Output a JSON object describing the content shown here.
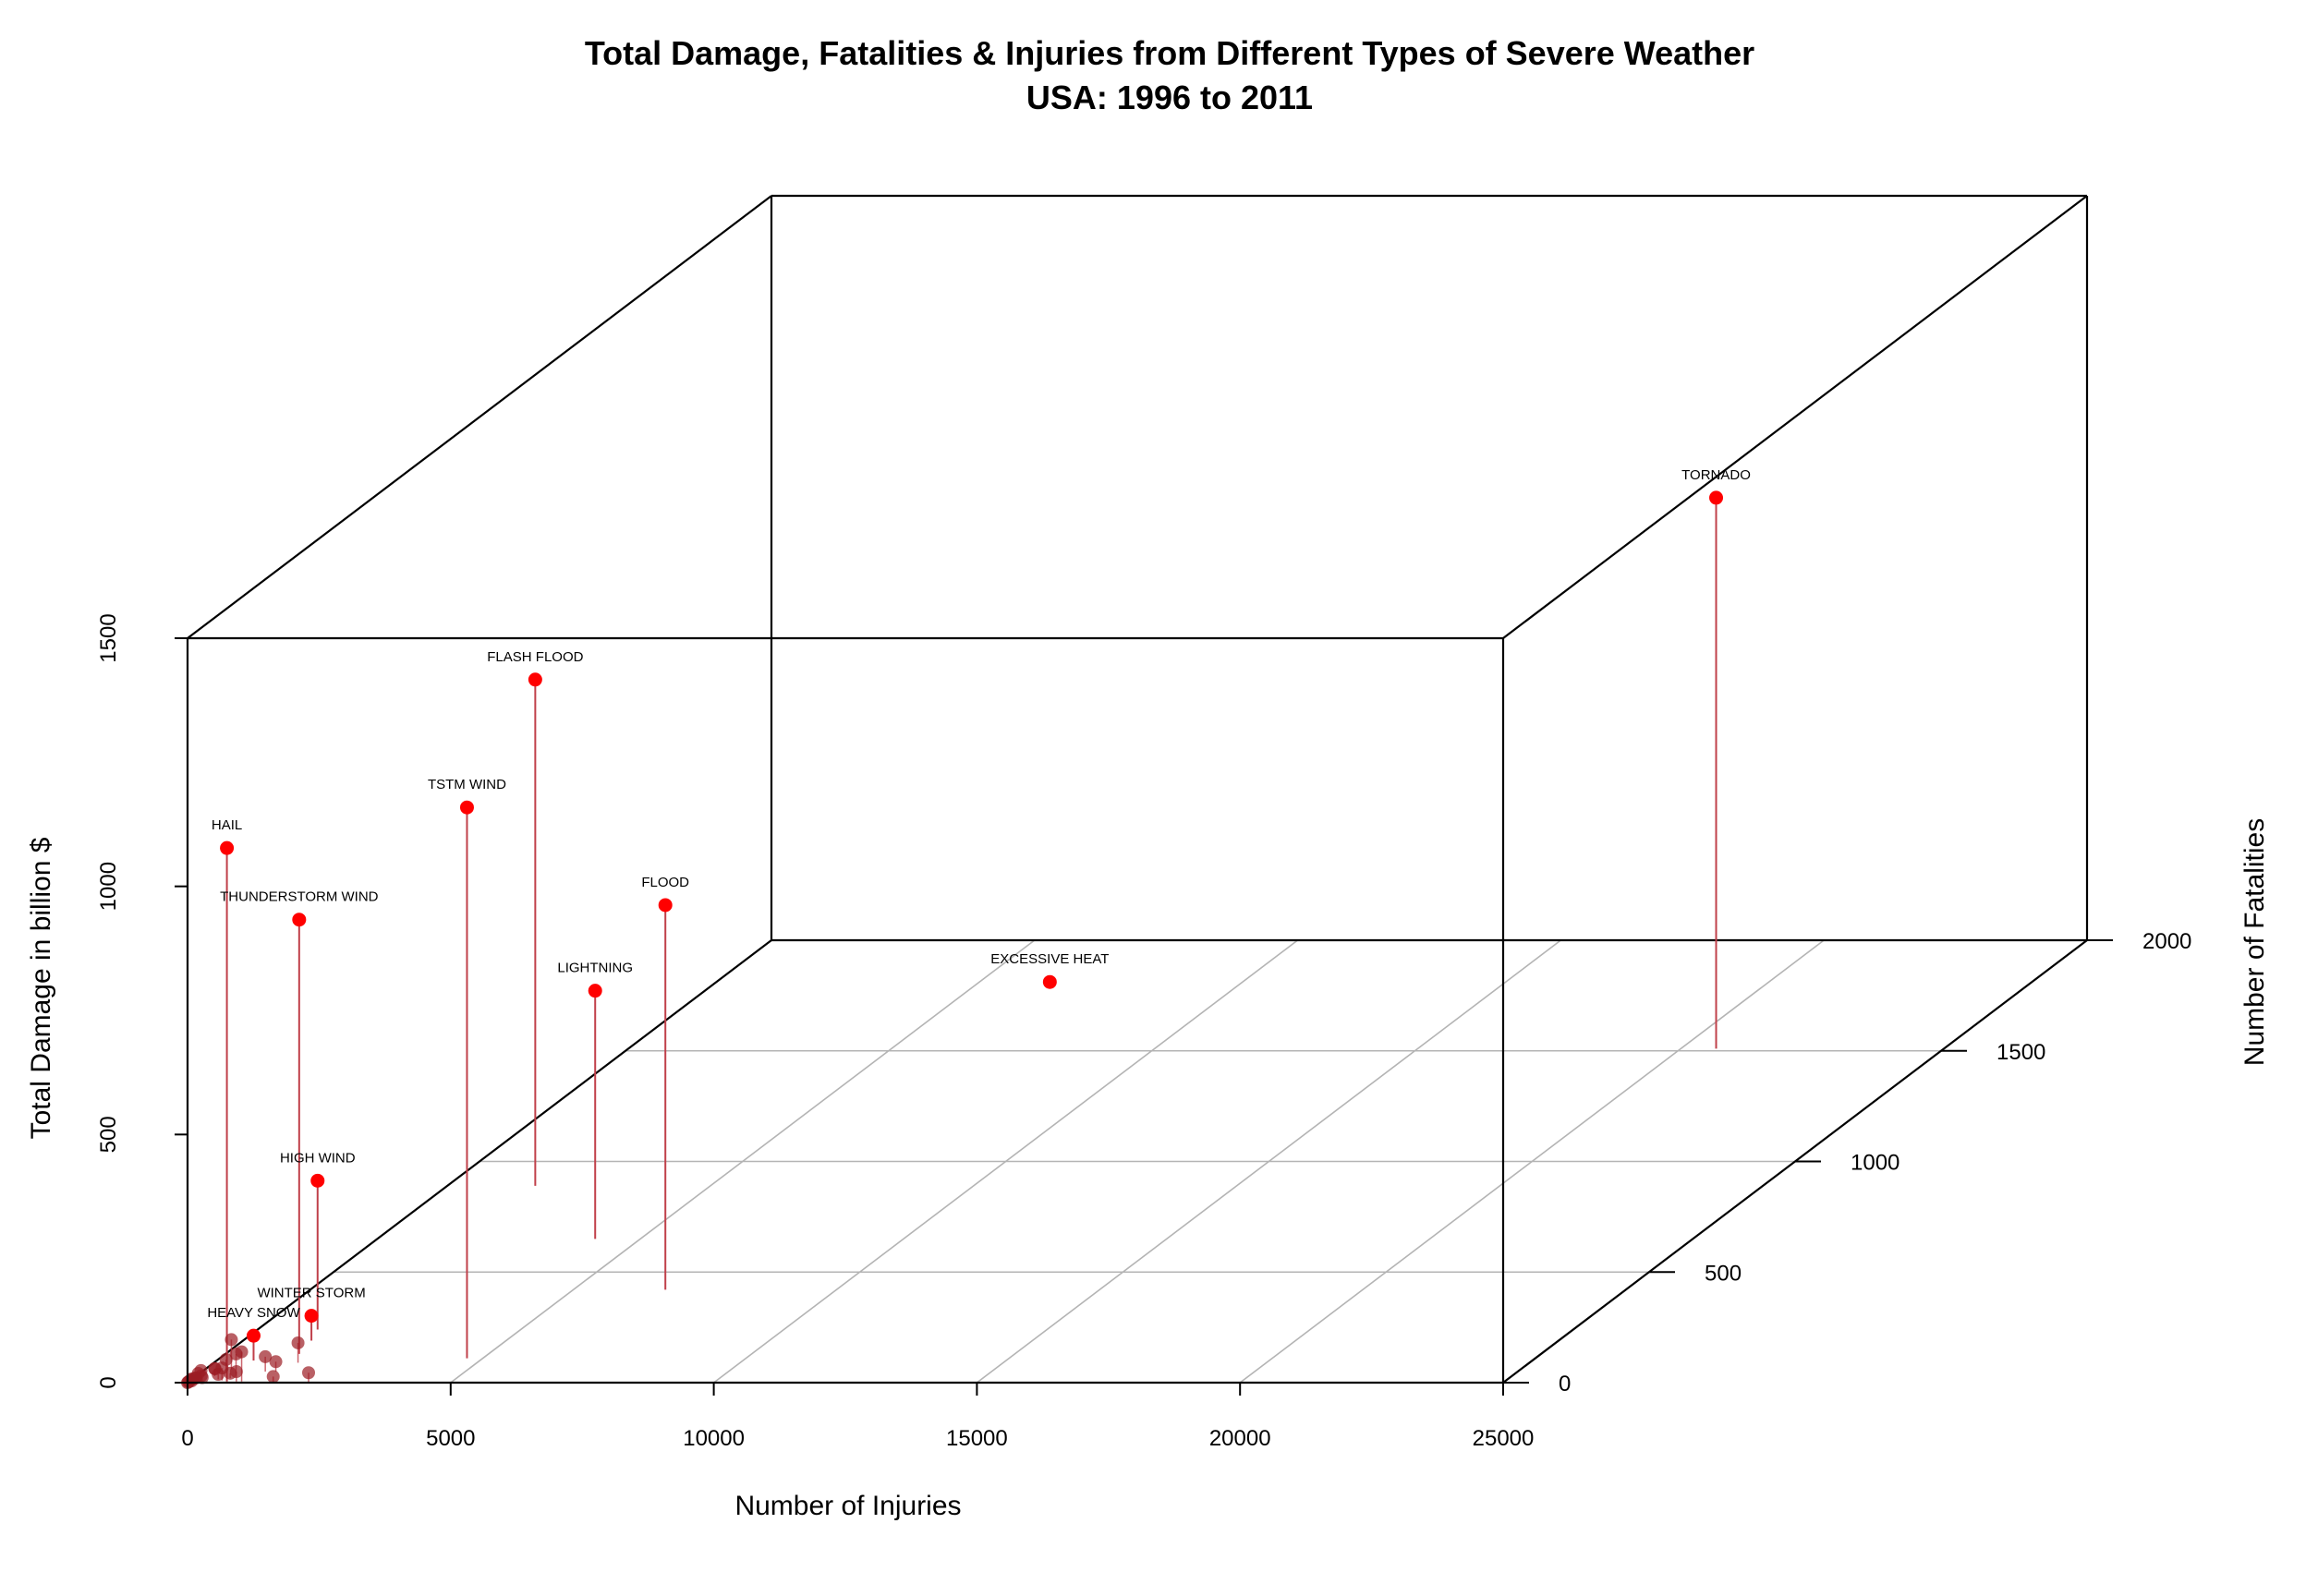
{
  "chart_data": {
    "type": "scatter",
    "subtype": "3d-scatter-with-drop-lines",
    "title": "Total Damage, Fatalities & Injuries from Different Types of Severe Weather",
    "subtitle": "USA: 1996 to 2011",
    "xlabel": "Number of Injuries",
    "ylabel": "Total Damage in billion $",
    "zlabel": "Number of Fatalities",
    "xlim": [
      0,
      25000
    ],
    "ylim": [
      0,
      1500
    ],
    "zlim": [
      0,
      2000
    ],
    "x_ticks": [
      "0",
      "5000",
      "10000",
      "15000",
      "20000",
      "25000"
    ],
    "y_ticks": [
      "0",
      "500",
      "1000",
      "1500"
    ],
    "z_ticks": [
      "0",
      "500",
      "1000",
      "1500",
      "2000"
    ],
    "grid": true,
    "point_color": "#ff0000",
    "drop_line_color": "#c0404a",
    "minor_point_color": "#9b1c24",
    "labeled_points": [
      {
        "label": "TORNADO",
        "injuries": 20670,
        "damage": 1110,
        "fatalities": 1510
      },
      {
        "label": "FLASH FLOOD",
        "injuries": 1670,
        "damage": 1020,
        "fatalities": 890
      },
      {
        "label": "TSTM WIND",
        "injuries": 4700,
        "damage": 1110,
        "fatalities": 110
      },
      {
        "label": "FLOOD",
        "injuries": 6750,
        "damage": 775,
        "fatalities": 420
      },
      {
        "label": "HAIL",
        "injuries": 720,
        "damage": 1075,
        "fatalities": 5
      },
      {
        "label": "THUNDERSTORM WIND",
        "injuries": 1400,
        "damage": 875,
        "fatalities": 130
      },
      {
        "label": "LIGHTNING",
        "injuries": 4140,
        "damage": 500,
        "fatalities": 650
      },
      {
        "label": "EXCESSIVE HEAT",
        "injuries": 6400,
        "damage": 5,
        "fatalities": 1800
      },
      {
        "label": "HIGH WIND",
        "injuries": 1140,
        "damage": 300,
        "fatalities": 240
      },
      {
        "label": "WINTER STORM",
        "injuries": 1300,
        "damage": 50,
        "fatalities": 190
      },
      {
        "label": "HEAVY SNOW",
        "injuries": 700,
        "damage": 50,
        "fatalities": 100
      }
    ],
    "other_points": [
      {
        "injuries": 1600,
        "damage": 40,
        "fatalities": 90
      },
      {
        "injuries": 2300,
        "damage": 20,
        "fatalities": 0
      },
      {
        "injuries": 1200,
        "damage": 30,
        "fatalities": 50
      },
      {
        "injuries": 1400,
        "damage": 20,
        "fatalities": 50
      },
      {
        "injuries": 900,
        "damage": 20,
        "fatalities": 5
      },
      {
        "injuries": 1000,
        "damage": 60,
        "fatalities": 5
      },
      {
        "injuries": 1600,
        "damage": 10,
        "fatalities": 5
      },
      {
        "injuries": 500,
        "damage": 60,
        "fatalities": 60
      },
      {
        "injuries": 700,
        "damage": 40,
        "fatalities": 40
      },
      {
        "injuries": 400,
        "damage": 20,
        "fatalities": 60
      },
      {
        "injuries": 300,
        "damage": 10,
        "fatalities": 40
      },
      {
        "injuries": 200,
        "damage": 20,
        "fatalities": 10
      },
      {
        "injuries": 350,
        "damage": 15,
        "fatalities": 30
      },
      {
        "injuries": 700,
        "damage": 10,
        "fatalities": 20
      },
      {
        "injuries": 500,
        "damage": 10,
        "fatalities": 15
      },
      {
        "injuries": 150,
        "damage": 5,
        "fatalities": 20
      },
      {
        "injuries": 100,
        "damage": 5,
        "fatalities": 10
      },
      {
        "injuries": 50,
        "damage": 5,
        "fatalities": 5
      },
      {
        "injuries": 20,
        "damage": 2,
        "fatalities": 2
      },
      {
        "injuries": 10,
        "damage": 1,
        "fatalities": 1
      },
      {
        "injuries": 0,
        "damage": 0,
        "fatalities": 0
      },
      {
        "injuries": 60,
        "damage": 2,
        "fatalities": 3
      },
      {
        "injuries": 30,
        "damage": 3,
        "fatalities": 8
      },
      {
        "injuries": 250,
        "damage": 8,
        "fatalities": 5
      },
      {
        "injuries": 120,
        "damage": 12,
        "fatalities": 15
      },
      {
        "injuries": 80,
        "damage": 4,
        "fatalities": 12
      },
      {
        "injuries": 600,
        "damage": 25,
        "fatalities": 10
      }
    ]
  }
}
